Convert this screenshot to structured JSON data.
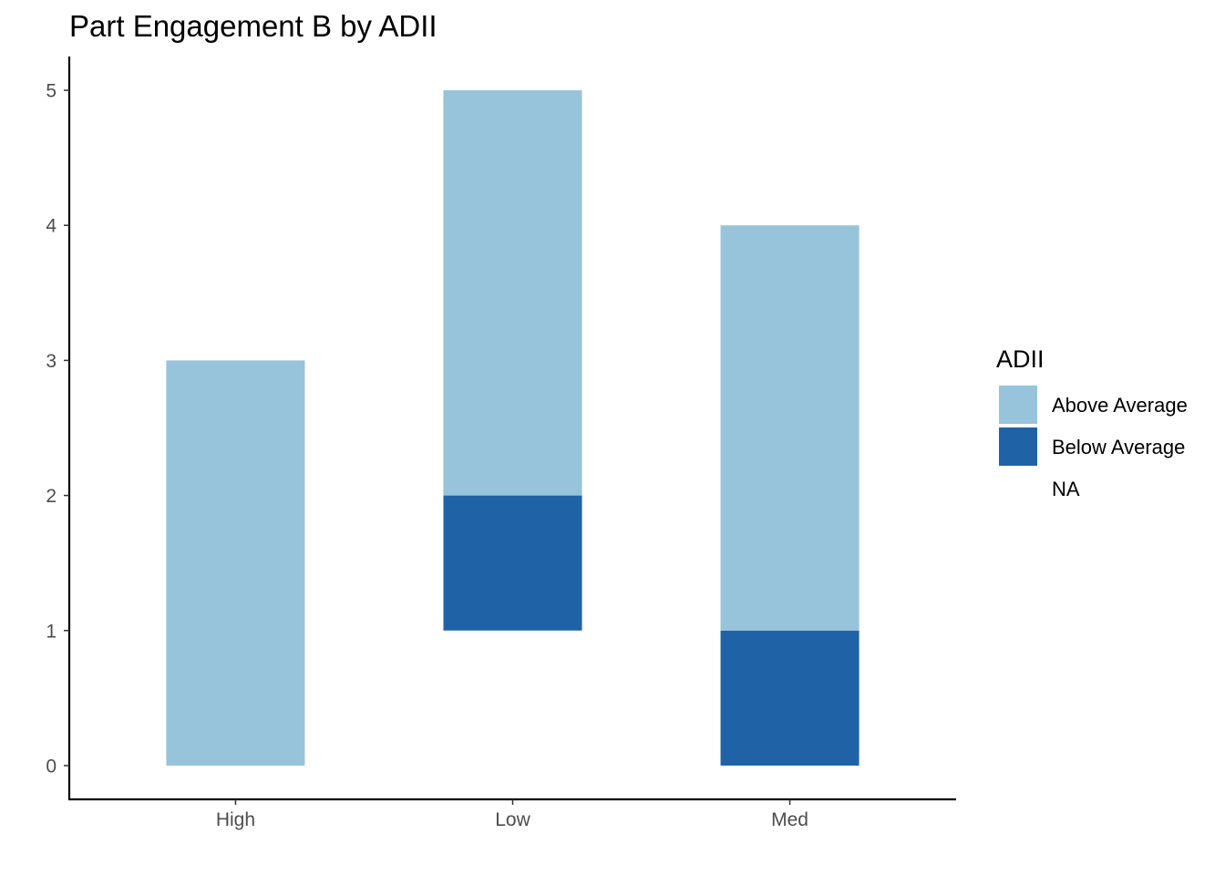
{
  "chart_data": {
    "type": "bar",
    "stacked": true,
    "title": "Part Engagement B by ADII",
    "xlabel": "",
    "ylabel": "",
    "categories": [
      "High",
      "Low",
      "Med"
    ],
    "ylim": [
      -0.25,
      5.25
    ],
    "y_ticks": [
      "0",
      "1",
      "2",
      "3",
      "4",
      "5"
    ],
    "grid": false,
    "legend": {
      "title": "ADII",
      "position": "right",
      "entries": [
        "Above Average",
        "Below Average",
        "NA"
      ]
    },
    "series": [
      {
        "name": "Above Average",
        "color": "#97c3db",
        "values": [
          3,
          3,
          3
        ]
      },
      {
        "name": "Below Average",
        "color": "#1f63a6",
        "values": [
          0,
          1,
          1
        ]
      },
      {
        "name": "NA",
        "color": "#ffffff",
        "values": [
          0,
          1,
          0
        ]
      }
    ]
  }
}
